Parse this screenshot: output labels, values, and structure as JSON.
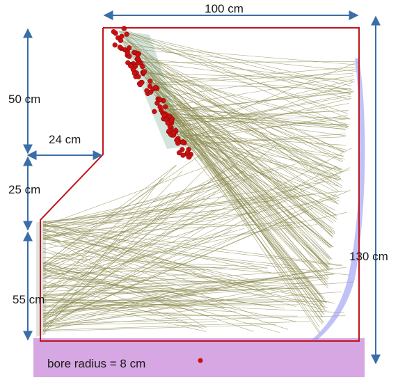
{
  "labels": {
    "width_top": "100 cm",
    "height_upper": "50 cm",
    "step_width": "24 cm",
    "height_middle": "25 cm",
    "height_lower": "55 cm",
    "height_total": "130 cm",
    "bore": "bore radius = 8 cm"
  },
  "colors": {
    "outline": "#c0141c",
    "rays": "#8b8a4e",
    "sensors": "#cc1010",
    "mirror": "#8a8ef0",
    "bore_band": "#c88ad8",
    "arrows": "#3a6ea8"
  }
}
